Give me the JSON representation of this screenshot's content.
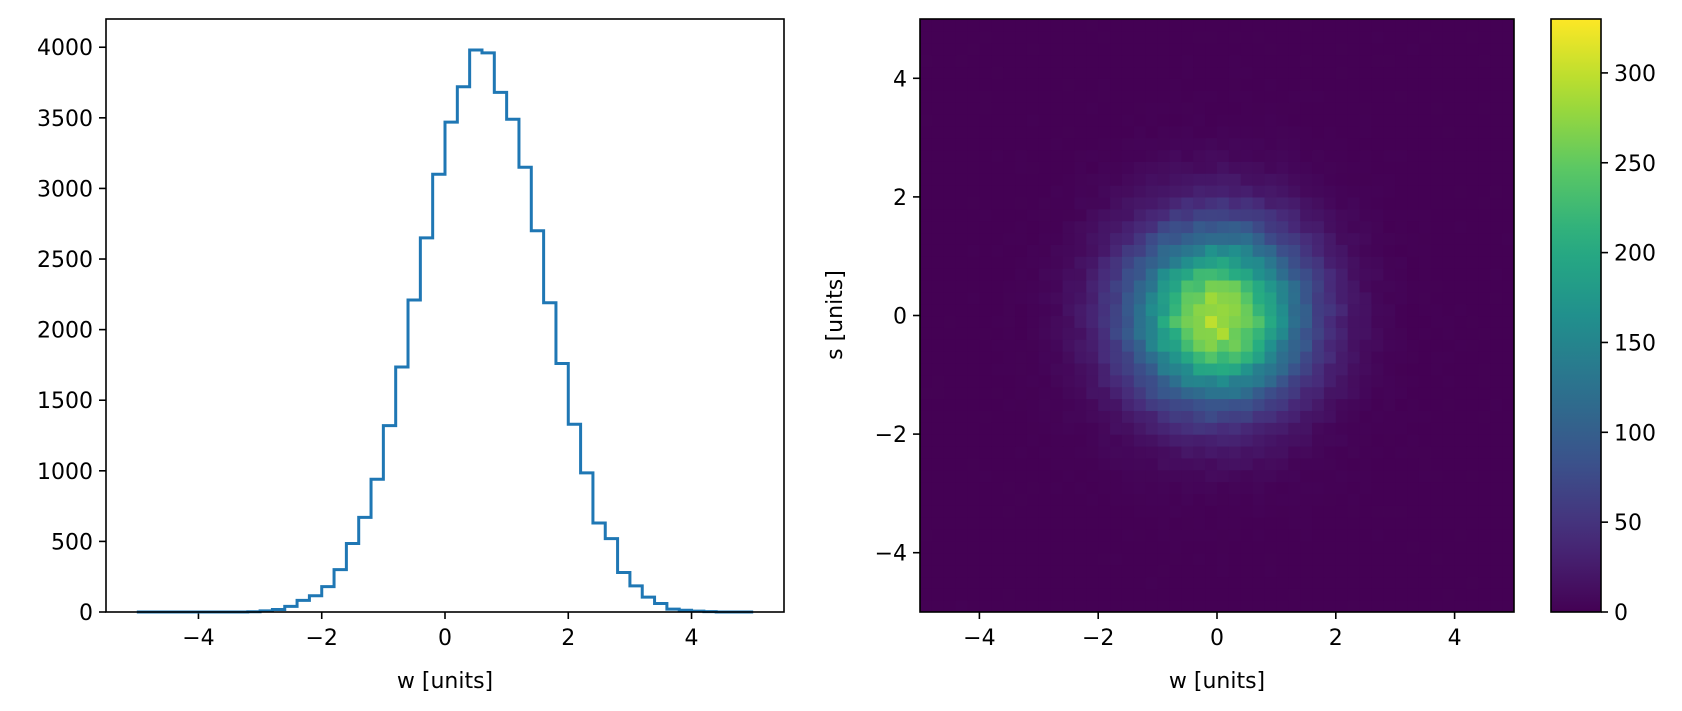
{
  "chart_data": [
    {
      "type": "histogram",
      "histtype": "step",
      "xlabel": "w [units]",
      "ylabel": "",
      "xlim": [
        -5.5,
        5.5
      ],
      "ylim": [
        0,
        4200
      ],
      "xticks": [
        -4,
        -2,
        0,
        2,
        4
      ],
      "yticks": [
        0,
        500,
        1000,
        1500,
        2000,
        2500,
        3000,
        3500,
        4000
      ],
      "line_color": "#1f77b4",
      "bin_range": [
        -5,
        5
      ],
      "bin_width": 0.2,
      "values": [
        0,
        0,
        0,
        0,
        0,
        0,
        0,
        0,
        0,
        2,
        8,
        18,
        40,
        82,
        115,
        180,
        300,
        485,
        670,
        940,
        1320,
        1735,
        2210,
        2650,
        3100,
        3470,
        3720,
        3980,
        3960,
        3680,
        3490,
        3150,
        2700,
        2190,
        1760,
        1330,
        985,
        630,
        520,
        280,
        185,
        105,
        60,
        20,
        12,
        6,
        3,
        0,
        0,
        0
      ]
    },
    {
      "type": "heatmap",
      "xlabel": "w [units]",
      "ylabel": "s [units]",
      "xlim": [
        -5,
        5
      ],
      "ylim": [
        -5,
        5
      ],
      "xticks": [
        -4,
        -2,
        0,
        2,
        4
      ],
      "yticks": [
        -4,
        -2,
        0,
        2,
        4
      ],
      "bins": 50,
      "peak": 330,
      "center": [
        0,
        0
      ],
      "sigma": 1.0,
      "colormap": "viridis",
      "colorbar_range": [
        0,
        330
      ],
      "colorbar_ticks": [
        0,
        50,
        100,
        150,
        200,
        250,
        300
      ]
    }
  ]
}
